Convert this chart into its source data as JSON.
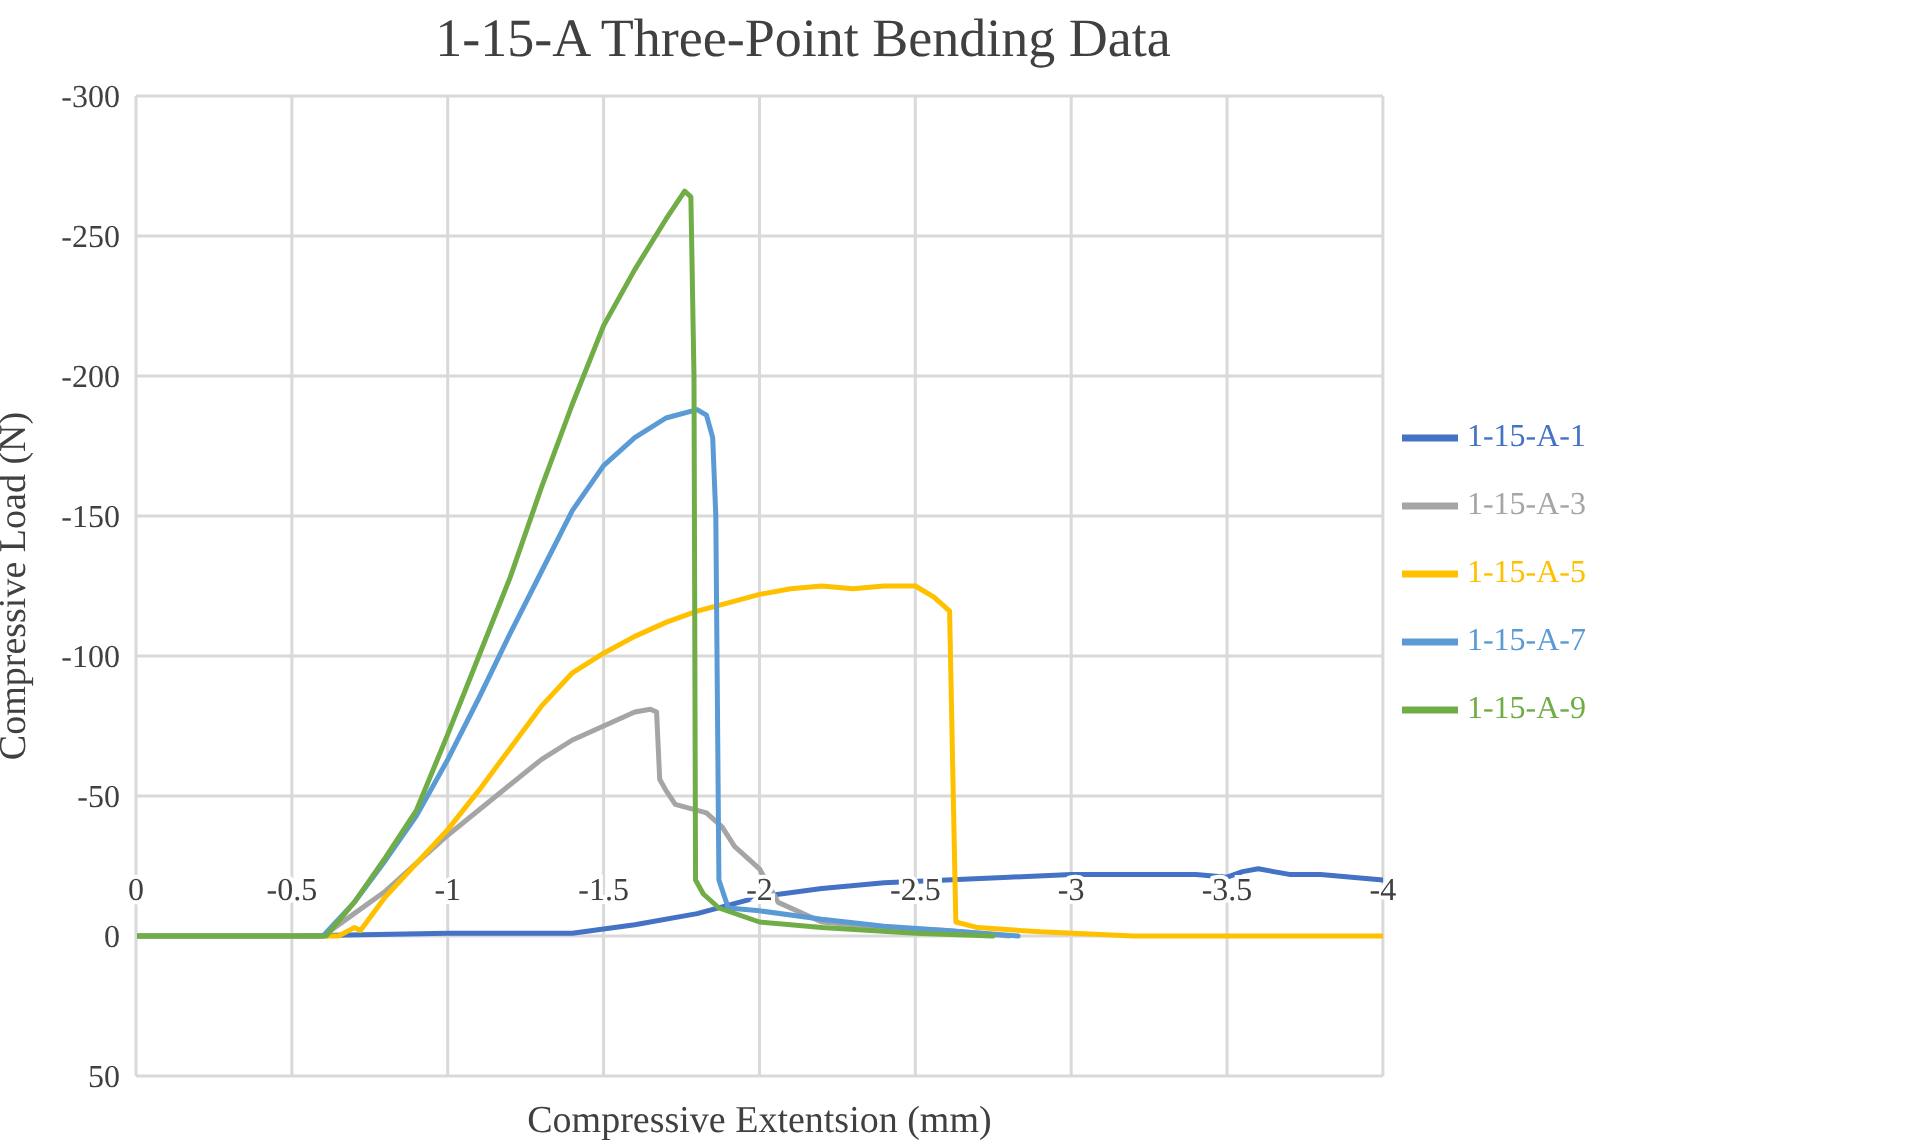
{
  "chart_data": {
    "type": "line",
    "title": "1-15-A Three-Point Bending Data",
    "xlabel": "Compressive Extentsion (mm)",
    "ylabel": "Compressive Load (N)",
    "xlim": [
      0,
      -4
    ],
    "xticks": [
      0,
      -0.5,
      -1,
      -1.5,
      -2,
      -2.5,
      -3,
      -3.5,
      -4
    ],
    "ylim": [
      50,
      -300
    ],
    "yticks": [
      -300,
      -250,
      -200,
      -150,
      -100,
      -50,
      0,
      50
    ],
    "grid": true,
    "legend": "right",
    "marker": "none",
    "line_style": "solid",
    "series": [
      {
        "name": "1-15-A-1",
        "color": "#4472c4",
        "x": [
          0,
          -0.5,
          -1.0,
          -1.4,
          -1.6,
          -1.8,
          -2.0,
          -2.2,
          -2.4,
          -2.6,
          -2.8,
          -3.0,
          -3.2,
          -3.4,
          -3.5,
          -3.55,
          -3.6,
          -3.7,
          -3.8,
          -3.9,
          -4
        ],
        "values": [
          0,
          0,
          -1,
          -1,
          -4,
          -8,
          -14,
          -17,
          -19,
          -20,
          -21,
          -22,
          -22,
          -22,
          -21,
          -23,
          -24,
          -22,
          -22,
          -21,
          -20
        ]
      },
      {
        "name": "1-15-A-3",
        "color": "#a5a5a5",
        "x": [
          0,
          -0.6,
          -0.7,
          -0.8,
          -0.9,
          -1.0,
          -1.1,
          -1.2,
          -1.3,
          -1.4,
          -1.5,
          -1.6,
          -1.65,
          -1.67,
          -1.68,
          -1.7,
          -1.73,
          -1.83,
          -1.88,
          -1.92,
          -2.0,
          -2.06,
          -2.2,
          -2.4,
          -2.6,
          -2.8
        ],
        "values": [
          0,
          0,
          -8,
          -16,
          -26,
          -36,
          -45,
          -54,
          -63,
          -70,
          -75,
          -80,
          -81,
          -80,
          -56,
          -52,
          -47,
          -44,
          -39,
          -32,
          -24,
          -12,
          -5,
          -3,
          -2,
          0
        ]
      },
      {
        "name": "1-15-A-5",
        "color": "#ffc000",
        "x": [
          0,
          -0.65,
          -0.7,
          -0.72,
          -0.8,
          -0.9,
          -1.0,
          -1.1,
          -1.2,
          -1.3,
          -1.4,
          -1.5,
          -1.6,
          -1.7,
          -1.8,
          -1.9,
          -2.0,
          -2.1,
          -2.2,
          -2.3,
          -2.4,
          -2.5,
          -2.56,
          -2.61,
          -2.62,
          -2.63,
          -2.7,
          -2.9,
          -3.2,
          -4
        ],
        "values": [
          0,
          0,
          -3,
          -2,
          -14,
          -26,
          -38,
          -52,
          -67,
          -82,
          -94,
          -101,
          -107,
          -112,
          -116,
          -119,
          -122,
          -124,
          -125,
          -124,
          -125,
          -125,
          -121,
          -116,
          -60,
          -5,
          -3,
          -1.5,
          0,
          0
        ]
      },
      {
        "name": "1-15-A-7",
        "color": "#5b9bd5",
        "x": [
          0,
          -0.6,
          -0.7,
          -0.8,
          -0.9,
          -1.0,
          -1.1,
          -1.2,
          -1.3,
          -1.4,
          -1.5,
          -1.6,
          -1.7,
          -1.8,
          -1.83,
          -1.85,
          -1.86,
          -1.87,
          -1.9,
          -2.0,
          -2.2,
          -2.4,
          -2.6,
          -2.83
        ],
        "values": [
          0,
          0,
          -12,
          -27,
          -43,
          -63,
          -85,
          -108,
          -130,
          -152,
          -168,
          -178,
          -185,
          -188,
          -186,
          -178,
          -150,
          -20,
          -10,
          -9,
          -6,
          -3.5,
          -2,
          0
        ]
      },
      {
        "name": "1-15-A-9",
        "color": "#70ad47",
        "x": [
          0,
          -0.61,
          -0.7,
          -0.8,
          -0.9,
          -1.0,
          -1.1,
          -1.2,
          -1.3,
          -1.4,
          -1.5,
          -1.6,
          -1.7,
          -1.76,
          -1.78,
          -1.79,
          -1.795,
          -1.82,
          -1.87,
          -2.0,
          -2.2,
          -2.5,
          -2.75
        ],
        "values": [
          0,
          0,
          -12,
          -28,
          -45,
          -72,
          -100,
          -128,
          -160,
          -190,
          -218,
          -238,
          -256,
          -266,
          -264,
          -200,
          -20,
          -15,
          -10,
          -5,
          -3,
          -1,
          0
        ]
      }
    ]
  }
}
